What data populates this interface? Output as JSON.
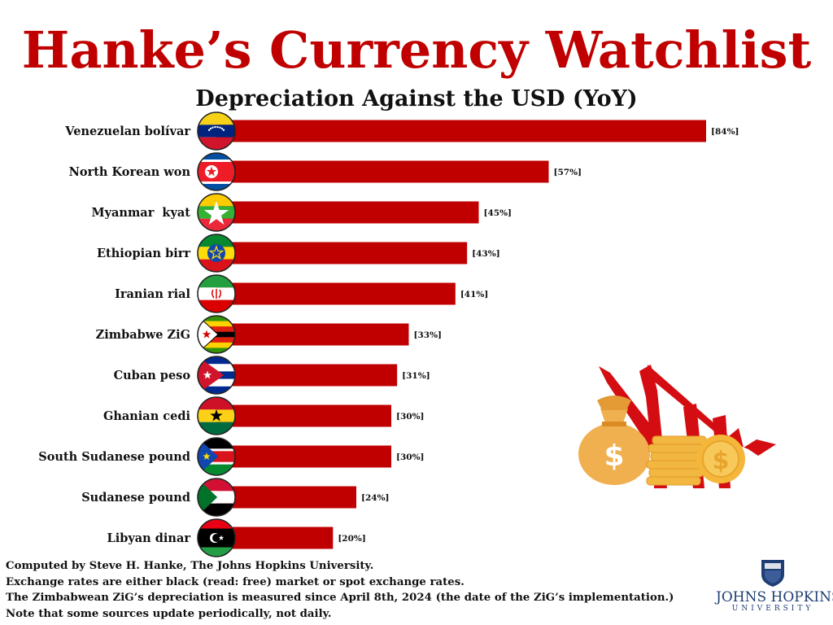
{
  "title": "Hanke’s Currency Watchlist",
  "subtitle": "Depreciation Against the USD (YoY)",
  "colors": {
    "title": "#c00000",
    "bar": "#c00000",
    "text": "#111111",
    "logo": "#1f3e73"
  },
  "chart_data": {
    "type": "bar",
    "orientation": "horizontal",
    "title": "Hanke’s Currency Watchlist",
    "subtitle": "Depreciation Against the USD (YoY)",
    "categories": [
      "Venezuelan bolívar",
      "North Korean won",
      "Myanmar  kyat",
      "Ethiopian birr",
      "Iranian rial",
      "Zimbabwe ZiG",
      "Cuban peso",
      "Ghanian cedi",
      "South Sudanese pound",
      "Sudanese pound",
      "Libyan dinar"
    ],
    "values": [
      84,
      57,
      45,
      43,
      41,
      33,
      31,
      30,
      30,
      24,
      20
    ],
    "value_labels": [
      "[84%]",
      "[57%]",
      "[45%]",
      "[43%]",
      "[41%]",
      "[33%]",
      "[31%]",
      "[30%]",
      "[30%]",
      "[24%]",
      "[20%]"
    ],
    "flags": [
      "venezuela-flag-icon",
      "north-korea-flag-icon",
      "myanmar-flag-icon",
      "ethiopia-flag-icon",
      "iran-flag-icon",
      "zimbabwe-flag-icon",
      "cuba-flag-icon",
      "ghana-flag-icon",
      "south-sudan-flag-icon",
      "sudan-flag-icon",
      "libya-flag-icon"
    ],
    "xlim": [
      0,
      100
    ],
    "grid": false,
    "legend": "none"
  },
  "footer": {
    "lines": [
      "Computed by Steve H. Hanke, The Johns Hopkins University.",
      "Exchange rates are either black (read: free) market or spot exchange rates.",
      "The Zimbabwean ZiG’s depreciation is measured since April 8th, 2024 (the date of the ZiG’s implementation.)",
      "Note that some sources update periodically, not daily."
    ]
  },
  "logo": {
    "name": "JOHNS HOPKINS",
    "sub": "UNIVERSITY"
  },
  "illustration": "money-bag-coins-falling-arrow-icon"
}
